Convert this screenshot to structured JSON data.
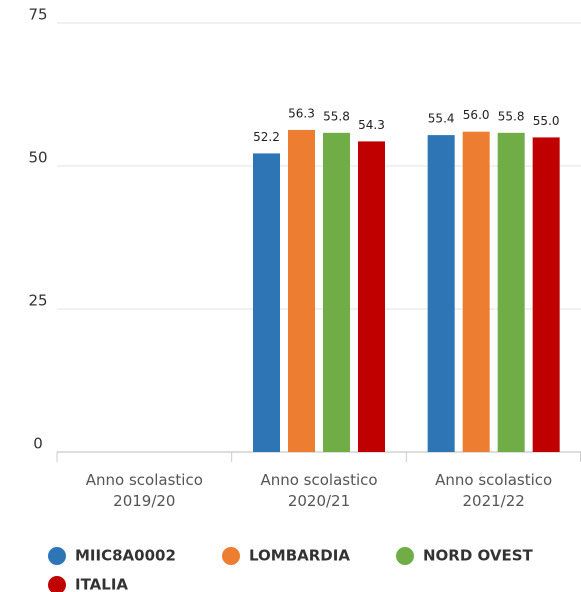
{
  "chart_data": {
    "type": "bar",
    "categories": [
      "Anno scolastico\n2019/20",
      "Anno scolastico\n2020/21",
      "Anno scolastico\n2021/22"
    ],
    "series": [
      {
        "name": "MIIC8A0002",
        "color": "#2e75b6",
        "values": [
          null,
          52.2,
          55.4
        ],
        "value_labels": [
          null,
          "52.2",
          "55.4"
        ]
      },
      {
        "name": "LOMBARDIA",
        "color": "#ed7d31",
        "values": [
          null,
          56.3,
          56.0
        ],
        "value_labels": [
          null,
          "56.3",
          "56.0"
        ]
      },
      {
        "name": "NORD OVEST",
        "color": "#70ad47",
        "values": [
          null,
          55.8,
          55.8
        ],
        "value_labels": [
          null,
          "55.8",
          "55.8"
        ]
      },
      {
        "name": "ITALIA",
        "color": "#c00000",
        "values": [
          null,
          54.3,
          55.0
        ],
        "value_labels": [
          null,
          "54.3",
          "55.0"
        ]
      }
    ],
    "ylim": [
      0,
      75
    ],
    "yticks": [
      0,
      25,
      50,
      75
    ],
    "grid": true
  }
}
